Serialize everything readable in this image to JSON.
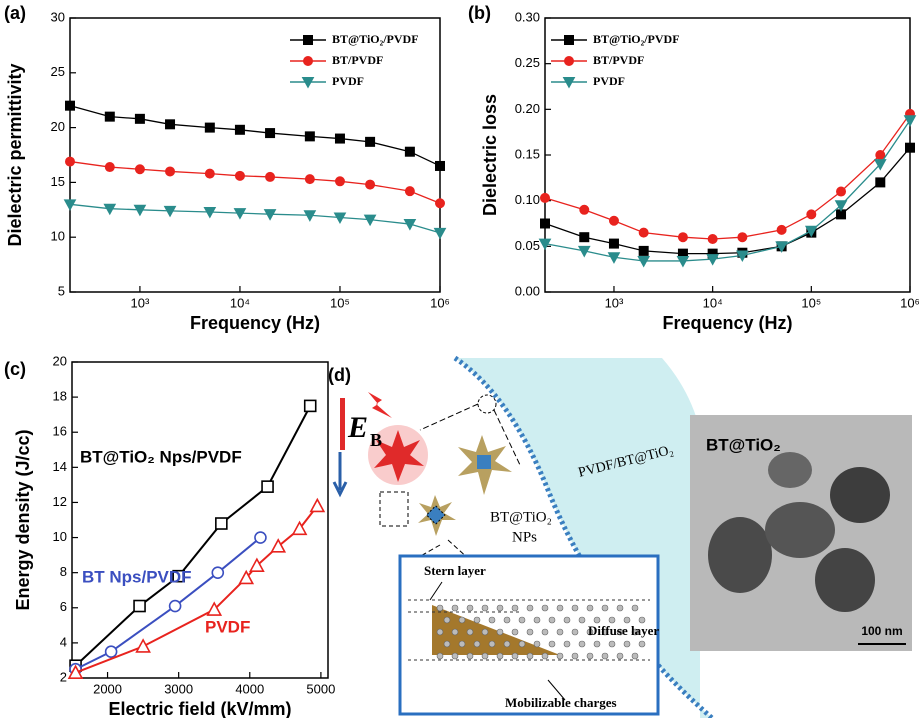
{
  "chart_data": [
    {
      "type": "line",
      "label": "(a)",
      "xlabel": "Frequency (Hz)",
      "ylabel": "Dielectric permittivity",
      "xlog": true,
      "xlim": [
        200,
        1000000
      ],
      "xticks": [
        {
          "value": 1000,
          "label": "10³"
        },
        {
          "value": 10000,
          "label": "10⁴"
        },
        {
          "value": 100000,
          "label": "10⁵"
        },
        {
          "value": 1000000,
          "label": "10⁶"
        }
      ],
      "ylim": [
        5,
        30
      ],
      "yticks": [
        5,
        10,
        15,
        20,
        25,
        30
      ],
      "legend": "upper right",
      "x": [
        200,
        500,
        1000,
        2000,
        5000,
        10000,
        20000,
        50000,
        100000,
        200000,
        500000,
        1000000
      ],
      "series": [
        {
          "name": "BT@TiO₂/PVDF",
          "color": "#000000",
          "marker": "square",
          "filled": true,
          "values": [
            22,
            21,
            20.8,
            20.3,
            20,
            19.8,
            19.5,
            19.2,
            19,
            18.7,
            17.8,
            16.5
          ]
        },
        {
          "name": "BT/PVDF",
          "color": "#e8231e",
          "marker": "circle",
          "filled": true,
          "values": [
            16.9,
            16.4,
            16.2,
            16,
            15.8,
            15.6,
            15.5,
            15.3,
            15.1,
            14.8,
            14.2,
            13.1
          ]
        },
        {
          "name": "PVDF",
          "color": "#2a8c8c",
          "marker": "triangle-down",
          "filled": true,
          "values": [
            13,
            12.6,
            12.5,
            12.4,
            12.3,
            12.2,
            12.1,
            12,
            11.8,
            11.6,
            11.2,
            10.4
          ]
        }
      ]
    },
    {
      "type": "line",
      "label": "(b)",
      "xlabel": "Frequency (Hz)",
      "ylabel": "Dielectric loss",
      "xlog": true,
      "xlim": [
        200,
        1000000
      ],
      "xticks": [
        {
          "value": 1000,
          "label": "10³"
        },
        {
          "value": 10000,
          "label": "10⁴"
        },
        {
          "value": 100000,
          "label": "10⁵"
        },
        {
          "value": 1000000,
          "label": "10⁶"
        }
      ],
      "ylim": [
        0,
        0.3
      ],
      "yticks": [
        {
          "value": 0,
          "label": "0.00"
        },
        0.05,
        {
          "value": 0.1,
          "label": "0.10"
        },
        0.15,
        {
          "value": 0.2,
          "label": "0.20"
        },
        0.25,
        {
          "value": 0.3,
          "label": "0.30"
        }
      ],
      "legend": "upper left",
      "x": [
        200,
        500,
        1000,
        2000,
        5000,
        10000,
        20000,
        50000,
        100000,
        200000,
        500000,
        1000000
      ],
      "series": [
        {
          "name": "BT@TiO₂/PVDF",
          "color": "#000000",
          "marker": "square",
          "filled": true,
          "values": [
            0.075,
            0.06,
            0.053,
            0.045,
            0.042,
            0.042,
            0.043,
            0.05,
            0.065,
            0.085,
            0.12,
            0.158
          ]
        },
        {
          "name": "BT/PVDF",
          "color": "#e8231e",
          "marker": "circle",
          "filled": true,
          "values": [
            0.103,
            0.09,
            0.078,
            0.065,
            0.06,
            0.058,
            0.06,
            0.068,
            0.085,
            0.11,
            0.15,
            0.195
          ]
        },
        {
          "name": "PVDF",
          "color": "#2a8c8c",
          "marker": "triangle-down",
          "filled": true,
          "values": [
            0.053,
            0.045,
            0.038,
            0.034,
            0.034,
            0.036,
            0.04,
            0.05,
            0.067,
            0.095,
            0.14,
            0.188
          ]
        }
      ]
    },
    {
      "type": "line",
      "label": "(c)",
      "xlabel": "Electric field (kV/mm)",
      "ylabel": "Energy density (J/cc)",
      "xlog": false,
      "xlim": [
        1500,
        5100
      ],
      "xticks": [
        2000,
        3000,
        4000,
        5000
      ],
      "ylim": [
        2,
        20
      ],
      "yticks": [
        2,
        4,
        6,
        8,
        10,
        12,
        14,
        16,
        18,
        20
      ],
      "legend": "inline",
      "series": [
        {
          "name": "BT@TiO₂ Nps/PVDF",
          "color": "#000000",
          "marker": "square",
          "filled": false,
          "x": [
            1550,
            2450,
            3000,
            3600,
            4250,
            4850
          ],
          "values": [
            2.7,
            6.1,
            7.8,
            10.8,
            12.9,
            17.5
          ]
        },
        {
          "name": "BT Nps/PVDF",
          "color": "#3b4fc0",
          "marker": "circle",
          "filled": false,
          "x": [
            1550,
            2050,
            2950,
            3550,
            4150
          ],
          "values": [
            2.5,
            3.5,
            6.1,
            8.0,
            10.0
          ]
        },
        {
          "name": "PVDF",
          "color": "#e8231e",
          "marker": "triangle-up",
          "filled": false,
          "x": [
            1550,
            2500,
            3500,
            3950,
            4100,
            4400,
            4700,
            4950
          ],
          "values": [
            2.3,
            3.8,
            5.9,
            7.7,
            8.4,
            9.5,
            10.5,
            11.8
          ]
        }
      ]
    }
  ],
  "diagram": {
    "label": "(d)",
    "field": "E",
    "field_sub": "B",
    "interface": "PVDF/BT@TiO₂",
    "particle": "BT@TiO₂",
    "particle_sub": "NPs",
    "stern": "Stern layer",
    "diffuse": "Diffuse layer",
    "charges": "Mobilizable charges",
    "tem_title": "BT@TiO₂",
    "scale": "100 nm"
  }
}
